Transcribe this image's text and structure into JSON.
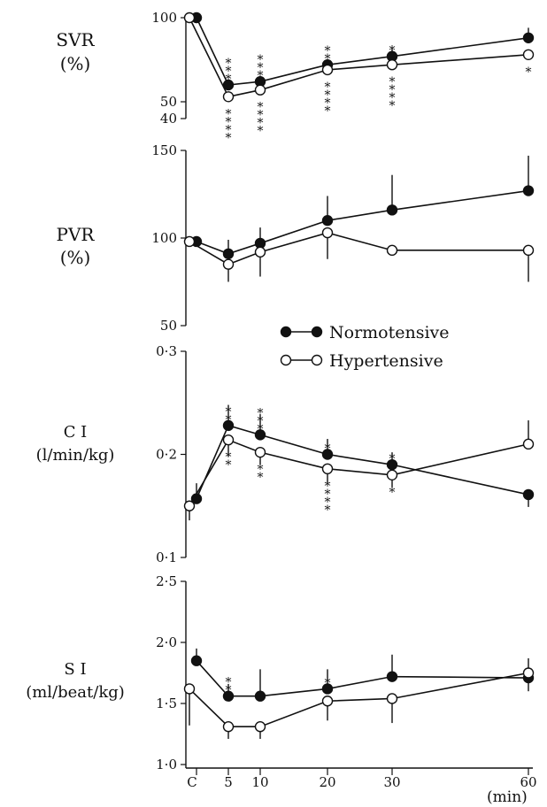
{
  "legend": {
    "normotensive": "Normotensive",
    "hypertensive": "Hypertensive",
    "placement": "between PVR and CI panels",
    "normotensive_marker": "filled circle",
    "hypertensive_marker": "open circle"
  },
  "x_axis": {
    "tick_labels": [
      "C",
      "5",
      "10",
      "20",
      "30",
      "60"
    ],
    "unit_label": "(min)"
  },
  "chart_data": [
    {
      "type": "line",
      "label_lines": [
        "SVR",
        "(%)"
      ],
      "y_tick_labels": [
        "100",
        "50",
        "40"
      ],
      "y_ticks": [
        100,
        50,
        40
      ],
      "ylim": [
        40,
        100
      ],
      "x": [
        "C",
        "5",
        "10",
        "20",
        "30",
        "60"
      ],
      "series": [
        {
          "name": "Normotensive",
          "values": [
            100,
            60,
            62,
            72,
            77,
            88
          ],
          "err_up": [
            0,
            0,
            0,
            0,
            5,
            6
          ],
          "err_down": [
            0,
            0,
            0,
            0,
            0,
            0
          ]
        },
        {
          "name": "Hypertensive",
          "values": [
            100,
            53,
            57,
            69,
            72,
            78
          ],
          "err_up": [
            0,
            0,
            0,
            0,
            0,
            0
          ],
          "err_down": [
            0,
            0,
            0,
            0,
            0,
            0
          ]
        }
      ],
      "annotations": [
        {
          "x": "5",
          "text": "***",
          "side": "above"
        },
        {
          "x": "5",
          "text": "****",
          "side": "below"
        },
        {
          "x": "10",
          "text": "***",
          "side": "above"
        },
        {
          "x": "10",
          "text": "****",
          "side": "below"
        },
        {
          "x": "20",
          "text": "**",
          "side": "above"
        },
        {
          "x": "20",
          "text": "****",
          "side": "below"
        },
        {
          "x": "30",
          "text": "*",
          "side": "above"
        },
        {
          "x": "30",
          "text": "****",
          "side": "below"
        },
        {
          "x": "60",
          "text": "*",
          "side": "below"
        }
      ]
    },
    {
      "type": "line",
      "label_lines": [
        "PVR",
        "(%)"
      ],
      "y_tick_labels": [
        "150",
        "100",
        "50"
      ],
      "y_ticks": [
        150,
        100,
        50
      ],
      "ylim": [
        50,
        150
      ],
      "x": [
        "C",
        "5",
        "10",
        "20",
        "30",
        "60"
      ],
      "series": [
        {
          "name": "Normotensive",
          "values": [
            98,
            91,
            97,
            110,
            116,
            127
          ],
          "err_up": [
            0,
            8,
            9,
            14,
            20,
            20
          ],
          "err_down": [
            0,
            0,
            0,
            0,
            0,
            0
          ]
        },
        {
          "name": "Hypertensive",
          "values": [
            98,
            85,
            92,
            103,
            93,
            93
          ],
          "err_up": [
            0,
            0,
            0,
            0,
            0,
            0
          ],
          "err_down": [
            0,
            10,
            14,
            15,
            0,
            18
          ]
        }
      ],
      "annotations": []
    },
    {
      "type": "line",
      "label_lines": [
        "C I",
        "(l/min/kg)"
      ],
      "y_tick_labels": [
        "0·3",
        "0·2",
        "0·1"
      ],
      "y_ticks": [
        0.3,
        0.2,
        0.1
      ],
      "ylim": [
        0.1,
        0.3
      ],
      "x": [
        "C",
        "5",
        "10",
        "20",
        "30",
        "60"
      ],
      "series": [
        {
          "name": "Normotensive",
          "values": [
            0.157,
            0.228,
            0.219,
            0.2,
            0.19,
            0.161
          ],
          "err_up": [
            0.015,
            0.02,
            0.02,
            0.015,
            0.012,
            0.0
          ],
          "err_down": [
            0,
            0,
            0,
            0,
            0,
            0.012
          ]
        },
        {
          "name": "Hypertensive",
          "values": [
            0.15,
            0.214,
            0.202,
            0.186,
            0.18,
            0.21
          ],
          "err_up": [
            0,
            0,
            0,
            0,
            0,
            0.023
          ],
          "err_down": [
            0.014,
            0.016,
            0.012,
            0.014,
            0.012,
            0
          ]
        }
      ],
      "annotations": [
        {
          "x": "5",
          "text": "**",
          "side": "above"
        },
        {
          "x": "5",
          "text": "**",
          "side": "below"
        },
        {
          "x": "10",
          "text": "***",
          "side": "above"
        },
        {
          "x": "10",
          "text": "**",
          "side": "below"
        },
        {
          "x": "20",
          "text": "*",
          "side": "above"
        },
        {
          "x": "20",
          "text": "****",
          "side": "below"
        },
        {
          "x": "30",
          "text": "*",
          "side": "above"
        },
        {
          "x": "30",
          "text": "*",
          "side": "below"
        }
      ]
    },
    {
      "type": "line",
      "label_lines": [
        "S I",
        "(ml/beat/kg)"
      ],
      "y_tick_labels": [
        "2·5",
        "2·0",
        "1·5",
        "1·0"
      ],
      "y_ticks": [
        2.5,
        2.0,
        1.5,
        1.0
      ],
      "ylim": [
        1.0,
        2.5
      ],
      "x": [
        "C",
        "5",
        "10",
        "20",
        "30",
        "60"
      ],
      "series": [
        {
          "name": "Normotensive",
          "values": [
            1.85,
            1.56,
            1.56,
            1.62,
            1.72,
            1.71
          ],
          "err_up": [
            0.1,
            0.1,
            0.22,
            0.16,
            0.18,
            0.16
          ],
          "err_down": [
            0,
            0,
            0,
            0,
            0,
            0
          ]
        },
        {
          "name": "Hypertensive",
          "values": [
            1.62,
            1.31,
            1.31,
            1.52,
            1.54,
            1.75
          ],
          "err_up": [
            0,
            0,
            0,
            0,
            0,
            0
          ],
          "err_down": [
            0.3,
            0.1,
            0.1,
            0.16,
            0.2,
            0.15
          ]
        }
      ],
      "annotations": [
        {
          "x": "5",
          "text": "**",
          "side": "above"
        },
        {
          "x": "20",
          "text": "*",
          "side": "above"
        }
      ]
    }
  ]
}
